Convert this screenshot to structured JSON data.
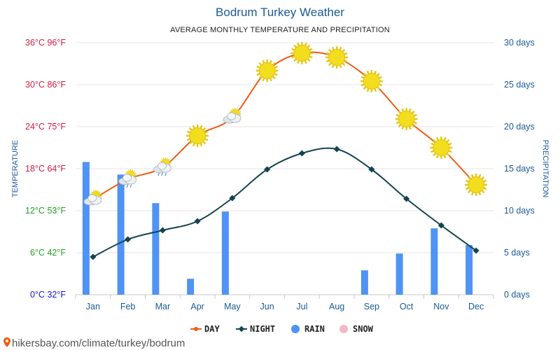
{
  "title": "Bodrum Turkey Weather",
  "subtitle": "AVERAGE MONTHLY TEMPERATURE AND PRECIPITATION",
  "source": "hikersbay.com/climate/turkey/bodrum",
  "colors": {
    "day": "#f25a14",
    "night": "#14444f",
    "rain": "#4f93f4",
    "snow": "#f5b8c8",
    "title": "#1a5a96",
    "sun": "#f2dd1e"
  },
  "chart_data": {
    "type": "line",
    "title": "Bodrum Turkey Weather",
    "subtitle": "AVERAGE MONTHLY TEMPERATURE AND PRECIPITATION",
    "categories": [
      "Jan",
      "Feb",
      "Mar",
      "Apr",
      "May",
      "Jun",
      "Jul",
      "Aug",
      "Sep",
      "Oct",
      "Nov",
      "Dec"
    ],
    "y_left": {
      "label": "TEMPERATURE",
      "unit": "°C",
      "ylim": [
        0,
        36
      ],
      "ticks": [
        {
          "value": 0,
          "label": "0°C 32°F",
          "color": "#1515d6"
        },
        {
          "value": 6,
          "label": "6°C 42°F",
          "color": "#23a023"
        },
        {
          "value": 12,
          "label": "12°C 53°F",
          "color": "#23a023"
        },
        {
          "value": 18,
          "label": "18°C 64°F",
          "color": "#d41a44"
        },
        {
          "value": 24,
          "label": "24°C 75°F",
          "color": "#d41a44"
        },
        {
          "value": 30,
          "label": "30°C 86°F",
          "color": "#d41a44"
        },
        {
          "value": 36,
          "label": "36°C 96°F",
          "color": "#d41a44"
        }
      ]
    },
    "y_right": {
      "label": "PRECIPITATION",
      "unit": "days",
      "ylim": [
        0,
        30
      ],
      "ticks": [
        {
          "value": 0,
          "label": "0 days"
        },
        {
          "value": 5,
          "label": "5 days"
        },
        {
          "value": 10,
          "label": "10 days"
        },
        {
          "value": 15,
          "label": "15 days"
        },
        {
          "value": 20,
          "label": "20 days"
        },
        {
          "value": 25,
          "label": "25 days"
        },
        {
          "value": 30,
          "label": "30 days"
        }
      ]
    },
    "series": [
      {
        "name": "DAY",
        "type": "line",
        "axis": "left",
        "values": [
          13.6,
          16.5,
          18.2,
          22.7,
          25.3,
          32.0,
          34.5,
          33.9,
          30.5,
          25.1,
          21.0,
          15.7
        ]
      },
      {
        "name": "NIGHT",
        "type": "line",
        "axis": "left",
        "values": [
          5.4,
          7.9,
          9.2,
          10.5,
          13.8,
          17.9,
          20.2,
          20.8,
          17.9,
          13.7,
          9.9,
          6.3
        ]
      },
      {
        "name": "RAIN",
        "type": "bar",
        "axis": "right",
        "values": [
          15.8,
          14.3,
          10.9,
          1.9,
          9.9,
          0,
          0,
          0,
          2.9,
          4.9,
          7.9,
          5.9
        ]
      },
      {
        "name": "SNOW",
        "type": "bar",
        "axis": "right",
        "values": [
          0,
          0,
          0,
          0,
          0,
          0,
          0,
          0,
          0,
          0,
          0,
          0
        ]
      }
    ],
    "weather_icons": [
      "partly-cloudy-icon",
      "rain-cloud-icon",
      "rain-cloud-icon",
      "sun-icon",
      "partly-cloudy-icon",
      "sun-icon",
      "sun-icon",
      "sun-icon",
      "sun-icon",
      "sun-icon",
      "sun-icon",
      "sun-icon"
    ],
    "legend": [
      {
        "label": "DAY",
        "color": "#f25a14",
        "kind": "line"
      },
      {
        "label": "NIGHT",
        "color": "#14444f",
        "kind": "line"
      },
      {
        "label": "RAIN",
        "color": "#4f93f4",
        "kind": "dot"
      },
      {
        "label": "SNOW",
        "color": "#f5b8c8",
        "kind": "dot"
      }
    ],
    "legend_position": "bottom",
    "grid": true
  }
}
